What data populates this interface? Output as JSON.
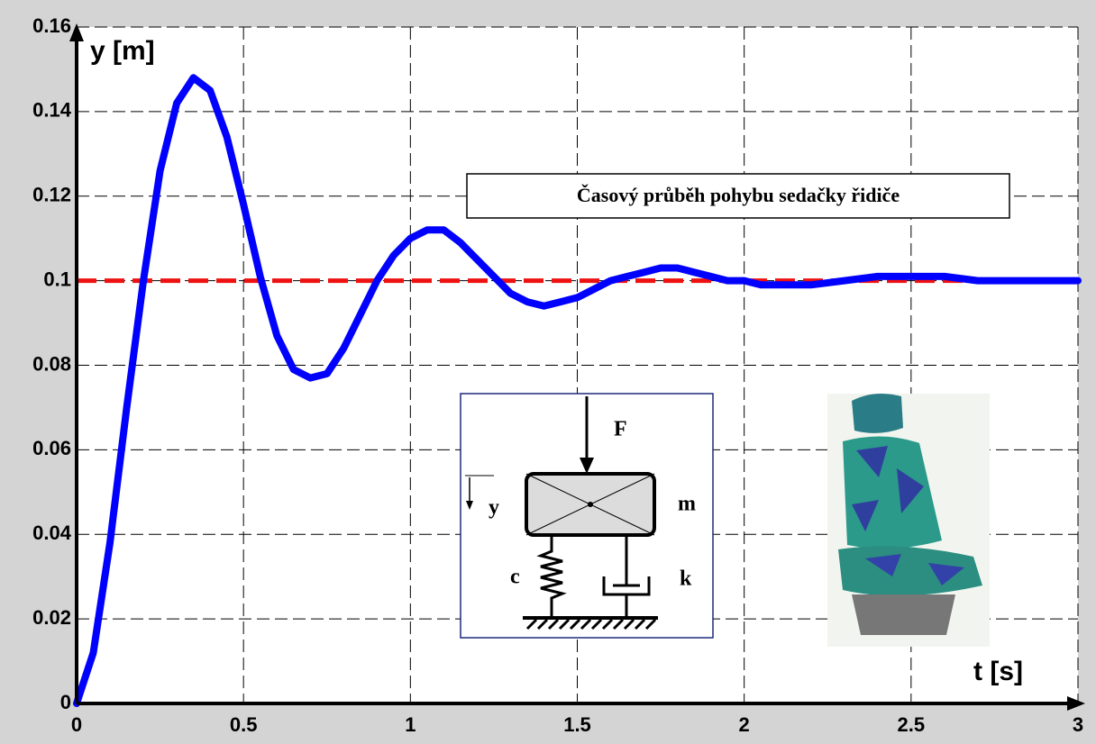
{
  "chart_data": {
    "type": "line",
    "ylabel": "y [m]",
    "xlabel": "t [s]",
    "annotation": "Časový průběh pohybu sedačky řidiče",
    "x": [
      0,
      0.05,
      0.1,
      0.15,
      0.2,
      0.25,
      0.3,
      0.35,
      0.4,
      0.45,
      0.5,
      0.55,
      0.6,
      0.65,
      0.7,
      0.75,
      0.8,
      0.85,
      0.9,
      0.95,
      1.0,
      1.05,
      1.1,
      1.15,
      1.2,
      1.25,
      1.3,
      1.35,
      1.4,
      1.45,
      1.5,
      1.55,
      1.6,
      1.65,
      1.7,
      1.75,
      1.8,
      1.85,
      1.9,
      1.95,
      2.0,
      2.05,
      2.1,
      2.15,
      2.2,
      2.3,
      2.4,
      2.5,
      2.6,
      2.7,
      2.8,
      2.9,
      3.0
    ],
    "values": [
      0,
      0.012,
      0.038,
      0.07,
      0.1,
      0.126,
      0.142,
      0.148,
      0.145,
      0.134,
      0.118,
      0.101,
      0.087,
      0.079,
      0.077,
      0.078,
      0.084,
      0.092,
      0.1,
      0.106,
      0.11,
      0.112,
      0.112,
      0.109,
      0.105,
      0.101,
      0.097,
      0.095,
      0.094,
      0.095,
      0.096,
      0.098,
      0.1,
      0.101,
      0.102,
      0.103,
      0.103,
      0.102,
      0.101,
      0.1,
      0.1,
      0.099,
      0.099,
      0.099,
      0.099,
      0.1,
      0.101,
      0.101,
      0.101,
      0.1,
      0.1,
      0.1,
      0.1
    ],
    "color": "#0000ff",
    "hline": {
      "value": 0.1,
      "color": "#ee1111"
    },
    "xlim": [
      0,
      3
    ],
    "ylim": [
      0,
      0.16
    ],
    "xticks": [
      0,
      0.5,
      1,
      1.5,
      2,
      2.5,
      3
    ],
    "yticks": [
      0,
      0.02,
      0.04,
      0.06,
      0.08,
      0.1,
      0.12,
      0.14,
      0.16
    ],
    "grid": true
  },
  "diagram": {
    "force": "F",
    "mass": "m",
    "displacement": "y",
    "spring": "c",
    "damper": "k"
  }
}
